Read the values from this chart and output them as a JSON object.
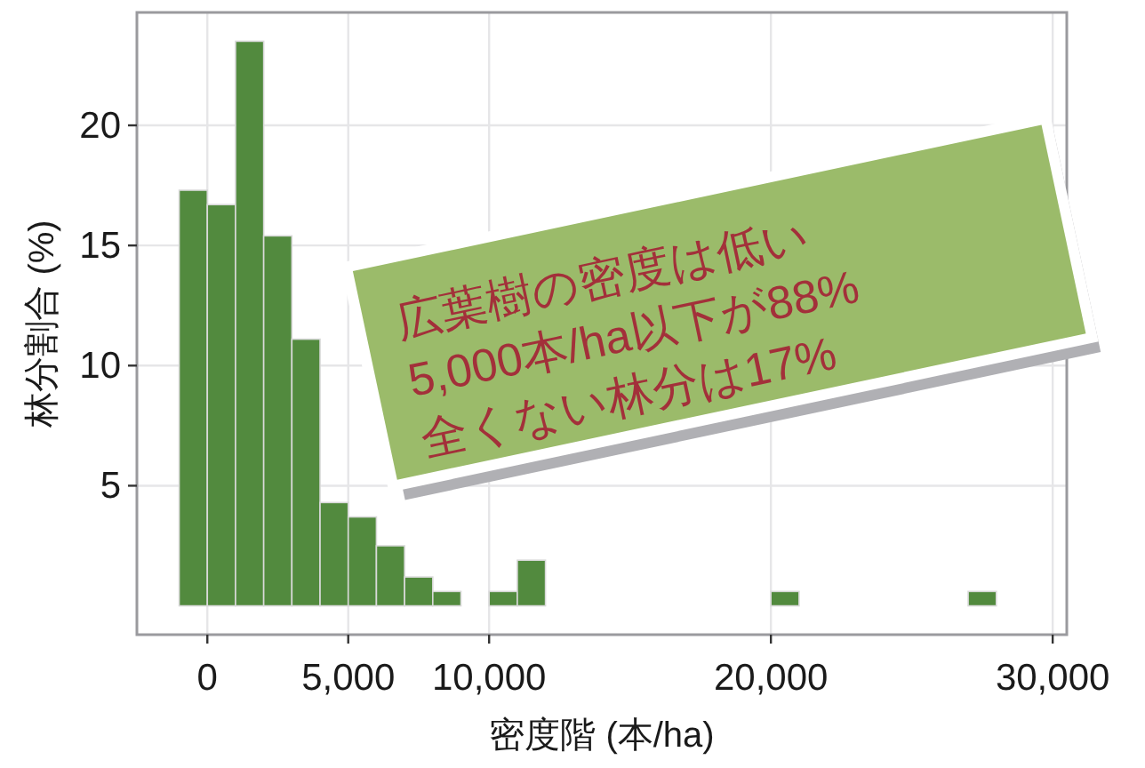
{
  "chart_data": {
    "type": "histogram",
    "xlabel": "密度階 (本/ha)",
    "ylabel": "林分割合 (%)",
    "bins": [
      -1000,
      0,
      1000,
      2000,
      3000,
      4000,
      5000,
      6000,
      7000,
      8000,
      9000,
      10000,
      11000,
      12000,
      13000,
      14000,
      15000,
      16000,
      17000,
      18000,
      19000,
      20000,
      21000,
      22000,
      23000,
      24000,
      25000,
      26000,
      27000,
      28000
    ],
    "values": [
      17.3,
      16.7,
      23.5,
      15.4,
      11.1,
      4.3,
      3.7,
      2.5,
      1.2,
      0.6,
      0,
      0.6,
      1.9,
      0,
      0,
      0,
      0,
      0,
      0,
      0,
      0,
      0.6,
      0,
      0,
      0,
      0,
      0,
      0,
      0.6
    ],
    "color": "#528a3e",
    "xlim": [
      -2500,
      30500
    ],
    "ylim": [
      -1.2,
      24.7
    ],
    "xticks": [
      0,
      {
        "value": 5000,
        "label": "5,000"
      },
      {
        "value": 10000,
        "label": "10,000"
      },
      {
        "value": 20000,
        "label": "20,000"
      },
      {
        "value": 30000,
        "label": "30,000"
      }
    ],
    "yticks": [
      5,
      10,
      15,
      20
    ],
    "grid": true,
    "annotations": [
      "広葉樹の密度は低い",
      "5,000本/ha以下が88%",
      "全くない林分は17%"
    ]
  }
}
